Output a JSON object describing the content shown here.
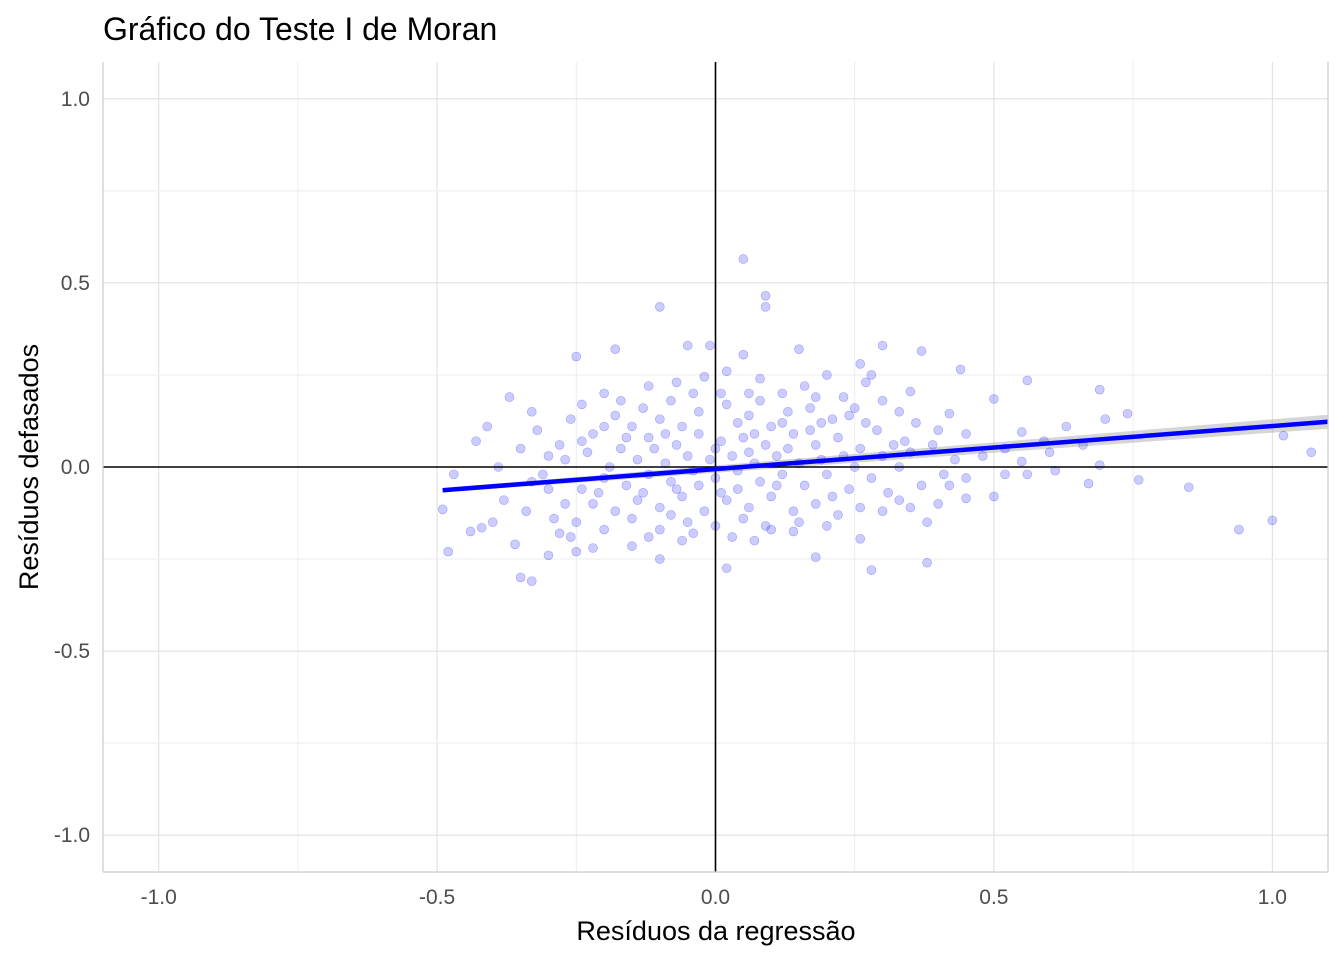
{
  "chart_data": {
    "type": "scatter",
    "title": "Gráfico do Teste I de Moran",
    "xlabel": "Resíduos da regressão",
    "ylabel": "Resíduos defasados",
    "xlim": [
      -1.1,
      1.1
    ],
    "ylim": [
      -1.1,
      1.1
    ],
    "x_ticks": [
      -1.0,
      -0.5,
      0.0,
      0.5,
      1.0
    ],
    "y_ticks": [
      -1.0,
      -0.5,
      0.0,
      0.5,
      1.0
    ],
    "x_tick_labels": [
      "-1.0",
      "-0.5",
      "0.0",
      "0.5",
      "1.0"
    ],
    "y_tick_labels": [
      "-1.0",
      "-0.5",
      "0.0",
      "0.5",
      "1.0"
    ],
    "grid": true,
    "reference_lines": {
      "x": 0,
      "y": 0
    },
    "point_color": "#0000ff",
    "point_opacity": 0.2,
    "fit_line": {
      "color": "#0000ff",
      "ribbon_color": "#999999",
      "x": [
        -0.49,
        1.1
      ],
      "y": [
        -0.063,
        0.123
      ],
      "ci_halfwidth": [
        0.006,
        0.019
      ]
    },
    "points": [
      [
        0.05,
        0.565
      ],
      [
        -0.1,
        0.435
      ],
      [
        0.09,
        0.465
      ],
      [
        0.09,
        0.435
      ],
      [
        -0.05,
        0.33
      ],
      [
        -0.01,
        0.33
      ],
      [
        -0.18,
        0.32
      ],
      [
        -0.25,
        0.3
      ],
      [
        0.05,
        0.305
      ],
      [
        0.15,
        0.32
      ],
      [
        0.3,
        0.33
      ],
      [
        0.37,
        0.315
      ],
      [
        0.26,
        0.28
      ],
      [
        0.28,
        0.25
      ],
      [
        0.44,
        0.265
      ],
      [
        0.56,
        0.235
      ],
      [
        0.69,
        0.21
      ],
      [
        0.35,
        0.205
      ],
      [
        0.5,
        0.185
      ],
      [
        0.74,
        0.145
      ],
      [
        0.7,
        0.13
      ],
      [
        0.63,
        0.11
      ],
      [
        0.42,
        0.145
      ],
      [
        0.55,
        0.095
      ],
      [
        0.45,
        0.09
      ],
      [
        0.59,
        0.07
      ],
      [
        0.66,
        0.06
      ],
      [
        0.52,
        0.05
      ],
      [
        0.6,
        0.04
      ],
      [
        0.48,
        0.03
      ],
      [
        0.55,
        0.015
      ],
      [
        0.61,
        -0.01
      ],
      [
        0.69,
        0.005
      ],
      [
        0.76,
        -0.035
      ],
      [
        0.67,
        -0.045
      ],
      [
        0.85,
        -0.055
      ],
      [
        0.56,
        -0.02
      ],
      [
        0.5,
        -0.08
      ],
      [
        0.45,
        -0.085
      ],
      [
        0.42,
        -0.05
      ],
      [
        0.38,
        -0.26
      ],
      [
        0.28,
        -0.28
      ],
      [
        0.94,
        -0.17
      ],
      [
        1.0,
        -0.145
      ],
      [
        1.02,
        0.085
      ],
      [
        1.07,
        0.04
      ],
      [
        0.26,
        -0.195
      ],
      [
        0.35,
        -0.11
      ],
      [
        0.3,
        -0.12
      ],
      [
        0.38,
        -0.15
      ],
      [
        -0.49,
        -0.115
      ],
      [
        -0.48,
        -0.23
      ],
      [
        -0.44,
        -0.175
      ],
      [
        -0.47,
        -0.02
      ],
      [
        -0.42,
        -0.165
      ],
      [
        -0.4,
        -0.15
      ],
      [
        -0.39,
        0.0
      ],
      [
        -0.41,
        0.11
      ],
      [
        -0.43,
        0.07
      ],
      [
        -0.37,
        0.19
      ],
      [
        -0.33,
        0.15
      ],
      [
        -0.36,
        -0.21
      ],
      [
        -0.35,
        -0.3
      ],
      [
        -0.33,
        -0.31
      ],
      [
        -0.3,
        -0.24
      ],
      [
        -0.28,
        -0.18
      ],
      [
        -0.25,
        -0.23
      ],
      [
        -0.22,
        -0.22
      ],
      [
        -0.15,
        -0.215
      ],
      [
        -0.1,
        -0.25
      ],
      [
        -0.06,
        -0.2
      ],
      [
        0.02,
        -0.275
      ],
      [
        0.07,
        -0.2
      ],
      [
        0.14,
        -0.175
      ],
      [
        0.18,
        -0.245
      ],
      [
        -0.35,
        0.05
      ],
      [
        -0.32,
        0.1
      ],
      [
        -0.28,
        0.06
      ],
      [
        -0.3,
        -0.06
      ],
      [
        -0.38,
        -0.09
      ],
      [
        -0.34,
        -0.12
      ],
      [
        -0.27,
        -0.1
      ],
      [
        -0.26,
        0.13
      ],
      [
        -0.24,
        0.17
      ],
      [
        -0.2,
        0.2
      ],
      [
        -0.12,
        0.22
      ],
      [
        -0.07,
        0.23
      ],
      [
        -0.02,
        0.245
      ],
      [
        0.02,
        0.26
      ],
      [
        0.08,
        0.24
      ],
      [
        0.12,
        0.2
      ],
      [
        0.16,
        0.22
      ],
      [
        0.2,
        0.25
      ],
      [
        0.23,
        0.19
      ],
      [
        0.27,
        0.23
      ],
      [
        0.3,
        0.18
      ],
      [
        0.33,
        0.15
      ],
      [
        0.36,
        0.12
      ],
      [
        0.4,
        0.1
      ],
      [
        0.34,
        0.07
      ],
      [
        0.29,
        0.1
      ],
      [
        0.24,
        0.14
      ],
      [
        0.19,
        0.12
      ],
      [
        0.13,
        0.15
      ],
      [
        0.1,
        0.11
      ],
      [
        0.06,
        0.14
      ],
      [
        0.02,
        0.17
      ],
      [
        -0.03,
        0.15
      ],
      [
        -0.08,
        0.18
      ],
      [
        -0.13,
        0.16
      ],
      [
        -0.18,
        0.14
      ],
      [
        -0.22,
        0.09
      ],
      [
        -0.17,
        0.05
      ],
      [
        -0.12,
        0.08
      ],
      [
        -0.07,
        0.06
      ],
      [
        -0.03,
        0.09
      ],
      [
        0.01,
        0.07
      ],
      [
        0.05,
        0.08
      ],
      [
        0.09,
        0.06
      ],
      [
        0.14,
        0.09
      ],
      [
        0.18,
        0.06
      ],
      [
        0.22,
        0.08
      ],
      [
        0.26,
        0.05
      ],
      [
        0.3,
        0.03
      ],
      [
        0.33,
        0.0
      ],
      [
        0.28,
        -0.03
      ],
      [
        0.24,
        -0.06
      ],
      [
        0.2,
        -0.02
      ],
      [
        0.16,
        -0.05
      ],
      [
        0.12,
        -0.02
      ],
      [
        0.08,
        -0.04
      ],
      [
        0.04,
        -0.01
      ],
      [
        0.0,
        -0.03
      ],
      [
        -0.04,
        -0.01
      ],
      [
        -0.08,
        -0.04
      ],
      [
        -0.12,
        -0.02
      ],
      [
        -0.16,
        -0.05
      ],
      [
        -0.2,
        -0.03
      ],
      [
        -0.24,
        -0.06
      ],
      [
        -0.22,
        -0.1
      ],
      [
        -0.18,
        -0.12
      ],
      [
        -0.14,
        -0.09
      ],
      [
        -0.1,
        -0.11
      ],
      [
        -0.06,
        -0.08
      ],
      [
        -0.02,
        -0.12
      ],
      [
        0.02,
        -0.09
      ],
      [
        0.06,
        -0.11
      ],
      [
        0.1,
        -0.08
      ],
      [
        0.14,
        -0.12
      ],
      [
        0.18,
        -0.1
      ],
      [
        0.22,
        -0.13
      ],
      [
        0.26,
        -0.11
      ],
      [
        0.2,
        -0.16
      ],
      [
        0.15,
        -0.15
      ],
      [
        0.1,
        -0.17
      ],
      [
        0.05,
        -0.14
      ],
      [
        0.0,
        -0.16
      ],
      [
        -0.05,
        -0.15
      ],
      [
        -0.1,
        -0.17
      ],
      [
        -0.15,
        -0.14
      ],
      [
        -0.2,
        -0.17
      ],
      [
        -0.25,
        -0.15
      ],
      [
        -0.12,
        -0.19
      ],
      [
        -0.04,
        -0.18
      ],
      [
        0.03,
        -0.19
      ],
      [
        0.09,
        -0.16
      ],
      [
        -0.01,
        0.02
      ],
      [
        0.03,
        0.03
      ],
      [
        -0.05,
        0.03
      ],
      [
        -0.09,
        0.01
      ],
      [
        0.07,
        0.01
      ],
      [
        0.11,
        0.03
      ],
      [
        -0.14,
        0.02
      ],
      [
        -0.19,
        0.0
      ],
      [
        0.15,
        0.01
      ],
      [
        0.19,
        0.02
      ],
      [
        -0.06,
        0.11
      ],
      [
        -0.1,
        0.13
      ],
      [
        0.04,
        0.12
      ],
      [
        0.08,
        0.18
      ],
      [
        -0.15,
        0.11
      ],
      [
        0.17,
        0.16
      ],
      [
        0.21,
        0.13
      ],
      [
        -0.23,
        0.04
      ],
      [
        -0.27,
        0.02
      ],
      [
        -0.31,
        -0.02
      ],
      [
        -0.29,
        -0.14
      ],
      [
        -0.26,
        -0.19
      ],
      [
        -0.21,
        -0.07
      ],
      [
        0.25,
        0.0
      ],
      [
        0.27,
        0.12
      ],
      [
        0.32,
        0.06
      ],
      [
        0.35,
        0.04
      ],
      [
        0.39,
        0.06
      ],
      [
        0.43,
        0.02
      ],
      [
        0.41,
        -0.02
      ],
      [
        0.37,
        -0.05
      ],
      [
        0.31,
        -0.07
      ],
      [
        0.33,
        -0.09
      ],
      [
        -0.11,
        0.05
      ],
      [
        -0.07,
        -0.06
      ],
      [
        0.0,
        0.05
      ],
      [
        0.06,
        0.04
      ],
      [
        -0.03,
        -0.05
      ],
      [
        0.01,
        -0.07
      ],
      [
        0.13,
        0.05
      ],
      [
        0.17,
        0.1
      ],
      [
        -0.16,
        0.08
      ],
      [
        -0.2,
        0.11
      ],
      [
        0.11,
        -0.05
      ],
      [
        -0.09,
        0.09
      ],
      [
        0.04,
        -0.06
      ],
      [
        -0.13,
        -0.07
      ],
      [
        0.07,
        0.09
      ],
      [
        0.21,
        -0.08
      ],
      [
        -0.24,
        0.07
      ],
      [
        0.23,
        0.03
      ],
      [
        -0.08,
        -0.13
      ],
      [
        0.12,
        0.12
      ],
      [
        -0.04,
        0.2
      ],
      [
        0.01,
        0.2
      ],
      [
        0.06,
        0.2
      ],
      [
        -0.17,
        0.18
      ],
      [
        0.18,
        0.19
      ],
      [
        0.25,
        0.16
      ],
      [
        -0.3,
        0.03
      ],
      [
        -0.33,
        -0.04
      ],
      [
        0.4,
        -0.1
      ],
      [
        0.45,
        -0.03
      ],
      [
        0.52,
        -0.02
      ]
    ]
  }
}
